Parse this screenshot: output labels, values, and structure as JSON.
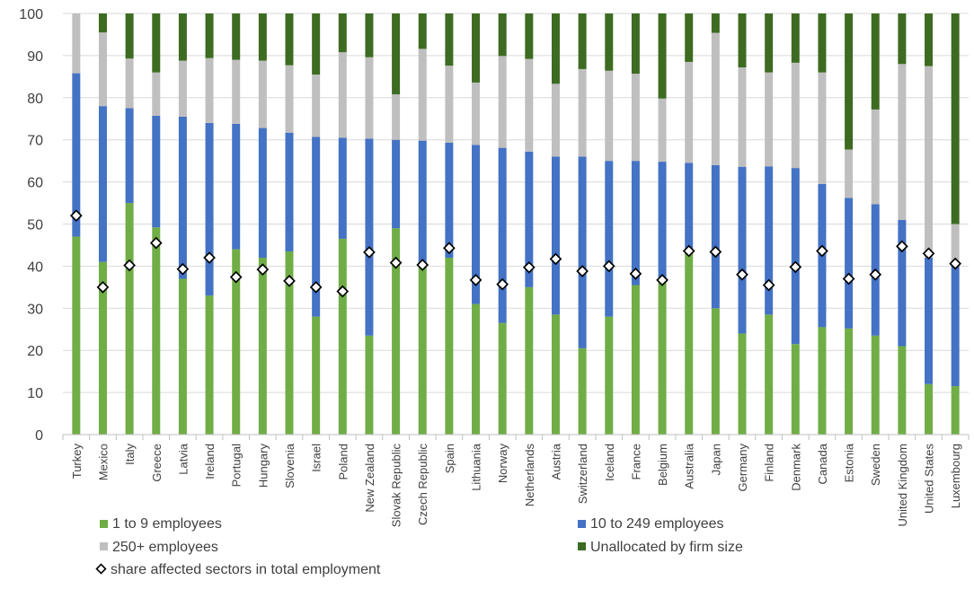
{
  "chart_data": {
    "type": "bar",
    "stacked": true,
    "ylim": [
      0,
      100
    ],
    "yticks": [
      0,
      10,
      20,
      30,
      40,
      50,
      60,
      70,
      80,
      90,
      100
    ],
    "grid": true,
    "legend_position": "bottom",
    "categories": [
      "Turkey",
      "Mexico",
      "Italy",
      "Greece",
      "Latvia",
      "Ireland",
      "Portugal",
      "Hungary",
      "Slovenia",
      "Israel",
      "Poland",
      "New Zealand",
      "Slovak Republic",
      "Czech Republic",
      "Spain",
      "Lithuania",
      "Norway",
      "Netherlands",
      "Austria",
      "Switzerland",
      "Iceland",
      "France",
      "Belgium",
      "Australia",
      "Japan",
      "Germany",
      "Finland",
      "Denmark",
      "Canada",
      "Estonia",
      "Sweden",
      "United Kingdom",
      "United States",
      "Luxembourg"
    ],
    "series": [
      {
        "name": "1 to 9 employees",
        "color": "#70ad47",
        "values": [
          47,
          41,
          55,
          49.2,
          37,
          33,
          44,
          42,
          43.5,
          28,
          46.5,
          23.5,
          49,
          40.5,
          42,
          31,
          26.5,
          35,
          28.5,
          20.5,
          28,
          35.5,
          37,
          43,
          30,
          24,
          28.5,
          21.5,
          25.5,
          25.2,
          23.5,
          21,
          12,
          11.5
        ]
      },
      {
        "name": "10 to 249 employees",
        "color": "#4472c4",
        "values": [
          38.8,
          37,
          22.5,
          26.5,
          38.5,
          41,
          29.8,
          30.8,
          28.2,
          42.7,
          24,
          46.8,
          21,
          29.3,
          27.3,
          37.8,
          41.6,
          32.2,
          37.5,
          45.5,
          37,
          29.5,
          27.8,
          21.5,
          34,
          39.6,
          35.2,
          41.8,
          34,
          31,
          31.2,
          30,
          30,
          28.5
        ]
      },
      {
        "name": "250+ employees",
        "color": "#bfbfbf",
        "values": [
          14.2,
          17.5,
          11.8,
          10.3,
          13.3,
          15.4,
          15.2,
          16,
          16,
          14.8,
          20.3,
          19.3,
          10.8,
          21.8,
          18.3,
          14.8,
          21.8,
          22,
          17.3,
          20.8,
          21.4,
          20.7,
          15,
          24,
          31.4,
          23.6,
          22.3,
          25,
          26.5,
          11.5,
          22.5,
          37,
          45.5,
          10
        ]
      },
      {
        "name": "Unallocated by firm size",
        "color": "#3d6b22",
        "values": [
          0,
          4.5,
          10.7,
          14,
          11.2,
          10.6,
          11,
          11.2,
          12.3,
          14.5,
          9.2,
          10.4,
          19.2,
          8.4,
          12.4,
          16.4,
          10.1,
          10.8,
          16.7,
          13.2,
          13.6,
          14.3,
          20.2,
          11.5,
          4.6,
          12.8,
          14,
          11.7,
          14,
          32.3,
          22.8,
          12,
          12.5,
          50
        ]
      }
    ],
    "markers": {
      "name": "share affected sectors in total employment",
      "values": [
        52,
        35,
        40.2,
        45.5,
        39.3,
        42,
        37.4,
        39.2,
        36.5,
        35,
        34,
        43.3,
        40.8,
        40.3,
        44.3,
        36.7,
        35.7,
        39.7,
        41.7,
        38.8,
        40,
        38.2,
        36.7,
        43.6,
        43.4,
        38,
        35.5,
        39.8,
        43.6,
        37,
        38,
        44.7,
        43,
        40.6
      ]
    },
    "legend": {
      "series0": "1 to 9 employees",
      "series1": "10 to 249 employees",
      "series2": "250+ employees",
      "series3": "Unallocated by firm size",
      "markers": "share affected sectors in total employment"
    }
  }
}
